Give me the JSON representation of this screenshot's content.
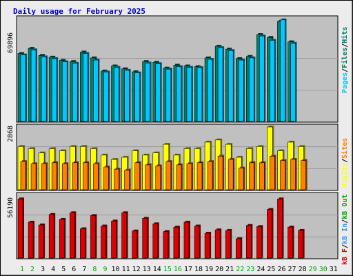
{
  "title": "Daily usage for February 2025",
  "colors": {
    "title": "#0000cc",
    "pages": "#00c8ff",
    "files": "#007a5e",
    "hits": "#00806b",
    "visits": "#ffff00",
    "sites": "#ff8000",
    "kbf": "#dd0000",
    "kbin": "#3399ff",
    "kbout": "#00aa00",
    "day_normal": "#006633",
    "day_weekend": "#00aa00",
    "panel_bg": "#c0c0c0",
    "frame_bg": "#ececec"
  },
  "chart_data": {
    "type": "bar",
    "days": [
      "1",
      "2",
      "3",
      "4",
      "5",
      "6",
      "7",
      "8",
      "9",
      "10",
      "11",
      "12",
      "13",
      "14",
      "15",
      "16",
      "17",
      "18",
      "19",
      "20",
      "21",
      "22",
      "23",
      "24",
      "25",
      "26",
      "27",
      "28",
      "29",
      "30",
      "31"
    ],
    "weekend_days": [
      1,
      2,
      8,
      9,
      15,
      16,
      22,
      23,
      29,
      30
    ],
    "hits_panel": {
      "ymax_label": "69896",
      "ymax": 69896,
      "legend": [
        "Pages",
        "/",
        "Files",
        "/",
        "Hits"
      ],
      "hits": [
        46500,
        50000,
        45200,
        44000,
        41800,
        41000,
        47500,
        43500,
        34500,
        38000,
        36000,
        34000,
        41000,
        40500,
        36500,
        38500,
        38000,
        37500,
        43500,
        51500,
        49500,
        43000,
        44500,
        59500,
        57500,
        68500,
        54500,
        null,
        null,
        null,
        null
      ],
      "files": [
        45500,
        49000,
        44200,
        43000,
        40800,
        39800,
        46500,
        42000,
        33800,
        37000,
        35000,
        33200,
        40000,
        39500,
        35800,
        37500,
        37000,
        36800,
        42500,
        50500,
        48500,
        42000,
        43500,
        58500,
        55500,
        69500,
        53500,
        null,
        null,
        null,
        null
      ],
      "pages": [
        0,
        0,
        0,
        0,
        0,
        0,
        0,
        0,
        0,
        0,
        0,
        0,
        0,
        0,
        0,
        0,
        0,
        0,
        0,
        0,
        0,
        0,
        0,
        0,
        0,
        0,
        0,
        null,
        null,
        null,
        null
      ]
    },
    "visits_panel": {
      "ymax_label": "2868",
      "ymax": 2868,
      "legend": [
        "Visits",
        "/",
        "Sites"
      ],
      "visits": [
        2000,
        1900,
        1700,
        1900,
        1800,
        2000,
        2000,
        1900,
        1600,
        1400,
        1500,
        1800,
        1600,
        1700,
        2100,
        1600,
        1900,
        1900,
        2200,
        2300,
        2100,
        1500,
        1900,
        2000,
        2900,
        1800,
        2200,
        2000,
        null,
        null,
        null
      ],
      "sites": [
        1300,
        1200,
        1200,
        1250,
        1200,
        1250,
        1250,
        1200,
        1050,
        950,
        900,
        1250,
        1150,
        1100,
        1300,
        1150,
        1200,
        1250,
        1300,
        1550,
        1400,
        1000,
        1250,
        1250,
        1550,
        1350,
        1400,
        1350,
        null,
        null,
        null
      ]
    },
    "kbytes_panel": {
      "ymax_label": "56190",
      "ymax": 56190,
      "legend": [
        "kB F",
        "/",
        "kB In",
        "/",
        "kB Out"
      ],
      "kbf": [
        53500,
        32500,
        30000,
        39500,
        35000,
        41000,
        26500,
        38500,
        29000,
        33500,
        41000,
        24500,
        36000,
        31000,
        24000,
        28000,
        32500,
        29000,
        22500,
        25500,
        25000,
        17500,
        29500,
        28500,
        44000,
        53500,
        28000,
        25000,
        null,
        null,
        null
      ],
      "kbin": [
        0,
        0,
        0,
        0,
        0,
        0,
        0,
        0,
        0,
        0,
        0,
        0,
        0,
        0,
        0,
        0,
        0,
        0,
        0,
        0,
        0,
        0,
        0,
        0,
        0,
        0,
        0,
        0,
        null,
        null,
        null
      ],
      "kbout": [
        0,
        0,
        0,
        0,
        0,
        0,
        0,
        0,
        0,
        0,
        0,
        0,
        0,
        0,
        0,
        0,
        0,
        0,
        0,
        0,
        0,
        0,
        0,
        0,
        0,
        0,
        0,
        0,
        null,
        null,
        null
      ]
    }
  }
}
